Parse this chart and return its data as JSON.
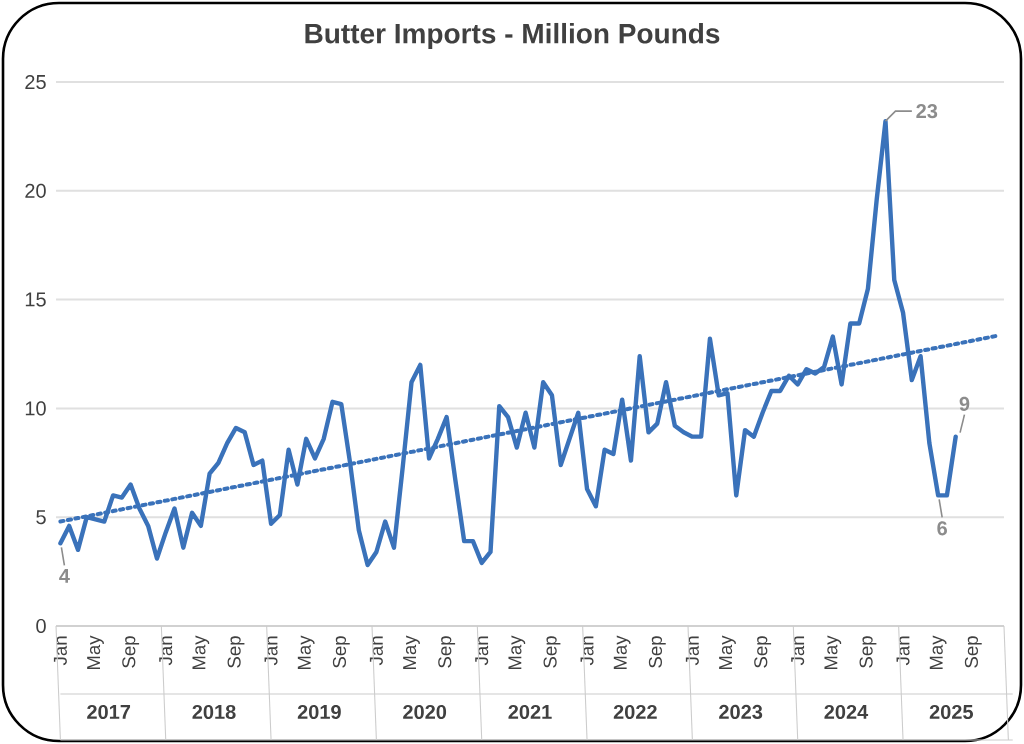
{
  "chart_data": {
    "type": "line",
    "title": "Butter Imports - Million Pounds",
    "categories": [
      "Jan",
      null,
      null,
      null,
      "May",
      null,
      null,
      null,
      "Sep",
      null,
      null,
      null,
      "Jan",
      null,
      null,
      null,
      "May",
      null,
      null,
      null,
      "Sep",
      null,
      null,
      null,
      "Jan",
      null,
      null,
      null,
      "May",
      null,
      null,
      null,
      "Sep",
      null,
      null,
      null,
      "Jan",
      null,
      null,
      null,
      "May",
      null,
      null,
      null,
      "Sep",
      null,
      null,
      null,
      "Jan",
      null,
      null,
      null,
      "May",
      null,
      null,
      null,
      "Sep",
      null,
      null,
      null,
      "Jan",
      null,
      null,
      null,
      "May",
      null,
      null,
      null,
      "Sep",
      null,
      null,
      null,
      "Jan",
      null,
      null,
      null,
      "May",
      null,
      null,
      null,
      "Sep",
      null,
      null,
      null,
      "Jan",
      null,
      null,
      null,
      "May",
      null,
      null,
      null,
      "Sep",
      null,
      null,
      null,
      "Jan",
      null,
      null,
      null,
      "May",
      null,
      null,
      null,
      "Sep",
      null,
      null,
      null
    ],
    "series": [
      {
        "color": "#3a72ba",
        "values": [
          3.8,
          4.6,
          3.5,
          5.0,
          4.9,
          4.8,
          6.0,
          5.9,
          6.5,
          5.4,
          4.6,
          3.1,
          4.3,
          5.4,
          3.6,
          5.2,
          4.6,
          7.0,
          7.5,
          8.4,
          9.1,
          8.9,
          7.4,
          7.6,
          4.7,
          5.1,
          8.1,
          6.5,
          8.6,
          7.7,
          8.6,
          10.3,
          10.2,
          7.5,
          4.4,
          2.8,
          3.4,
          4.8,
          3.6,
          7.3,
          11.2,
          12.0,
          7.7,
          8.6,
          9.6,
          6.7,
          3.9,
          3.9,
          2.9,
          3.4,
          10.1,
          9.6,
          8.2,
          9.8,
          8.2,
          11.2,
          10.6,
          7.4,
          8.6,
          9.8,
          6.3,
          5.5,
          8.1,
          7.9,
          10.4,
          7.6,
          12.4,
          8.9,
          9.3,
          11.2,
          9.2,
          8.9,
          8.7,
          8.7,
          13.2,
          10.6,
          10.7,
          6.0,
          9.0,
          8.7,
          9.8,
          10.8,
          10.8,
          11.5,
          11.1,
          11.8,
          11.6,
          11.9,
          13.3,
          11.1,
          13.9,
          13.9,
          15.5,
          19.6,
          23.2,
          15.9,
          14.4,
          11.3,
          12.4,
          8.4,
          6.0,
          6.0,
          8.7,
          null,
          null,
          null,
          null,
          null
        ],
        "value_labels": [
          "4",
          null,
          null,
          null,
          null,
          null,
          null,
          null,
          null,
          null,
          null,
          null,
          null,
          null,
          null,
          null,
          null,
          null,
          null,
          null,
          null,
          null,
          null,
          null,
          null,
          null,
          null,
          null,
          null,
          null,
          null,
          null,
          null,
          null,
          null,
          null,
          null,
          null,
          null,
          null,
          null,
          null,
          null,
          null,
          null,
          null,
          null,
          null,
          null,
          null,
          null,
          null,
          null,
          null,
          null,
          null,
          null,
          null,
          null,
          null,
          null,
          null,
          null,
          null,
          null,
          null,
          null,
          null,
          null,
          null,
          null,
          null,
          null,
          null,
          null,
          null,
          null,
          null,
          null,
          null,
          null,
          null,
          null,
          null,
          null,
          null,
          null,
          null,
          null,
          null,
          null,
          null,
          null,
          null,
          "23",
          null,
          null,
          null,
          null,
          null,
          "6",
          null,
          "9",
          null,
          null,
          null,
          null,
          null
        ]
      },
      {
        "type": "line",
        "color": "#3a72ba",
        "line_style": "dotted",
        "values": [
          4.8,
          4.88,
          4.96,
          5.04,
          5.12,
          5.2,
          5.28,
          5.36,
          5.44,
          5.52,
          5.6,
          5.68,
          5.76,
          5.84,
          5.92,
          6.0,
          6.08,
          6.16,
          6.24,
          6.32,
          6.4,
          6.48,
          6.56,
          6.64,
          6.72,
          6.8,
          6.88,
          6.96,
          7.04,
          7.12,
          7.2,
          7.28,
          7.36,
          7.44,
          7.52,
          7.6,
          7.68,
          7.76,
          7.84,
          7.92,
          8.0,
          8.08,
          8.16,
          8.24,
          8.32,
          8.4,
          8.48,
          8.56,
          8.64,
          8.72,
          8.8,
          8.88,
          8.96,
          9.04,
          9.12,
          9.2,
          9.28,
          9.36,
          9.44,
          9.52,
          9.6,
          9.68,
          9.76,
          9.84,
          9.92,
          10.0,
          10.08,
          10.16,
          10.24,
          10.32,
          10.4,
          10.48,
          10.56,
          10.64,
          10.72,
          10.8,
          10.88,
          10.96,
          11.04,
          11.12,
          11.2,
          11.28,
          11.36,
          11.44,
          11.52,
          11.6,
          11.68,
          11.76,
          11.84,
          11.92,
          12.0,
          12.08,
          12.16,
          12.24,
          12.32,
          12.4,
          12.48,
          12.56,
          12.64,
          12.72,
          12.8,
          12.88,
          12.96,
          13.04,
          13.12,
          13.2,
          13.28,
          13.36
        ]
      }
    ],
    "ylim": [
      0,
      25
    ],
    "yticks": [
      0,
      5,
      10,
      15,
      20,
      25
    ],
    "grid": "y",
    "annotations": [
      "2017",
      "2018",
      "2019",
      "2020",
      "2021",
      "2022",
      "2023",
      "2024",
      "2025"
    ]
  }
}
